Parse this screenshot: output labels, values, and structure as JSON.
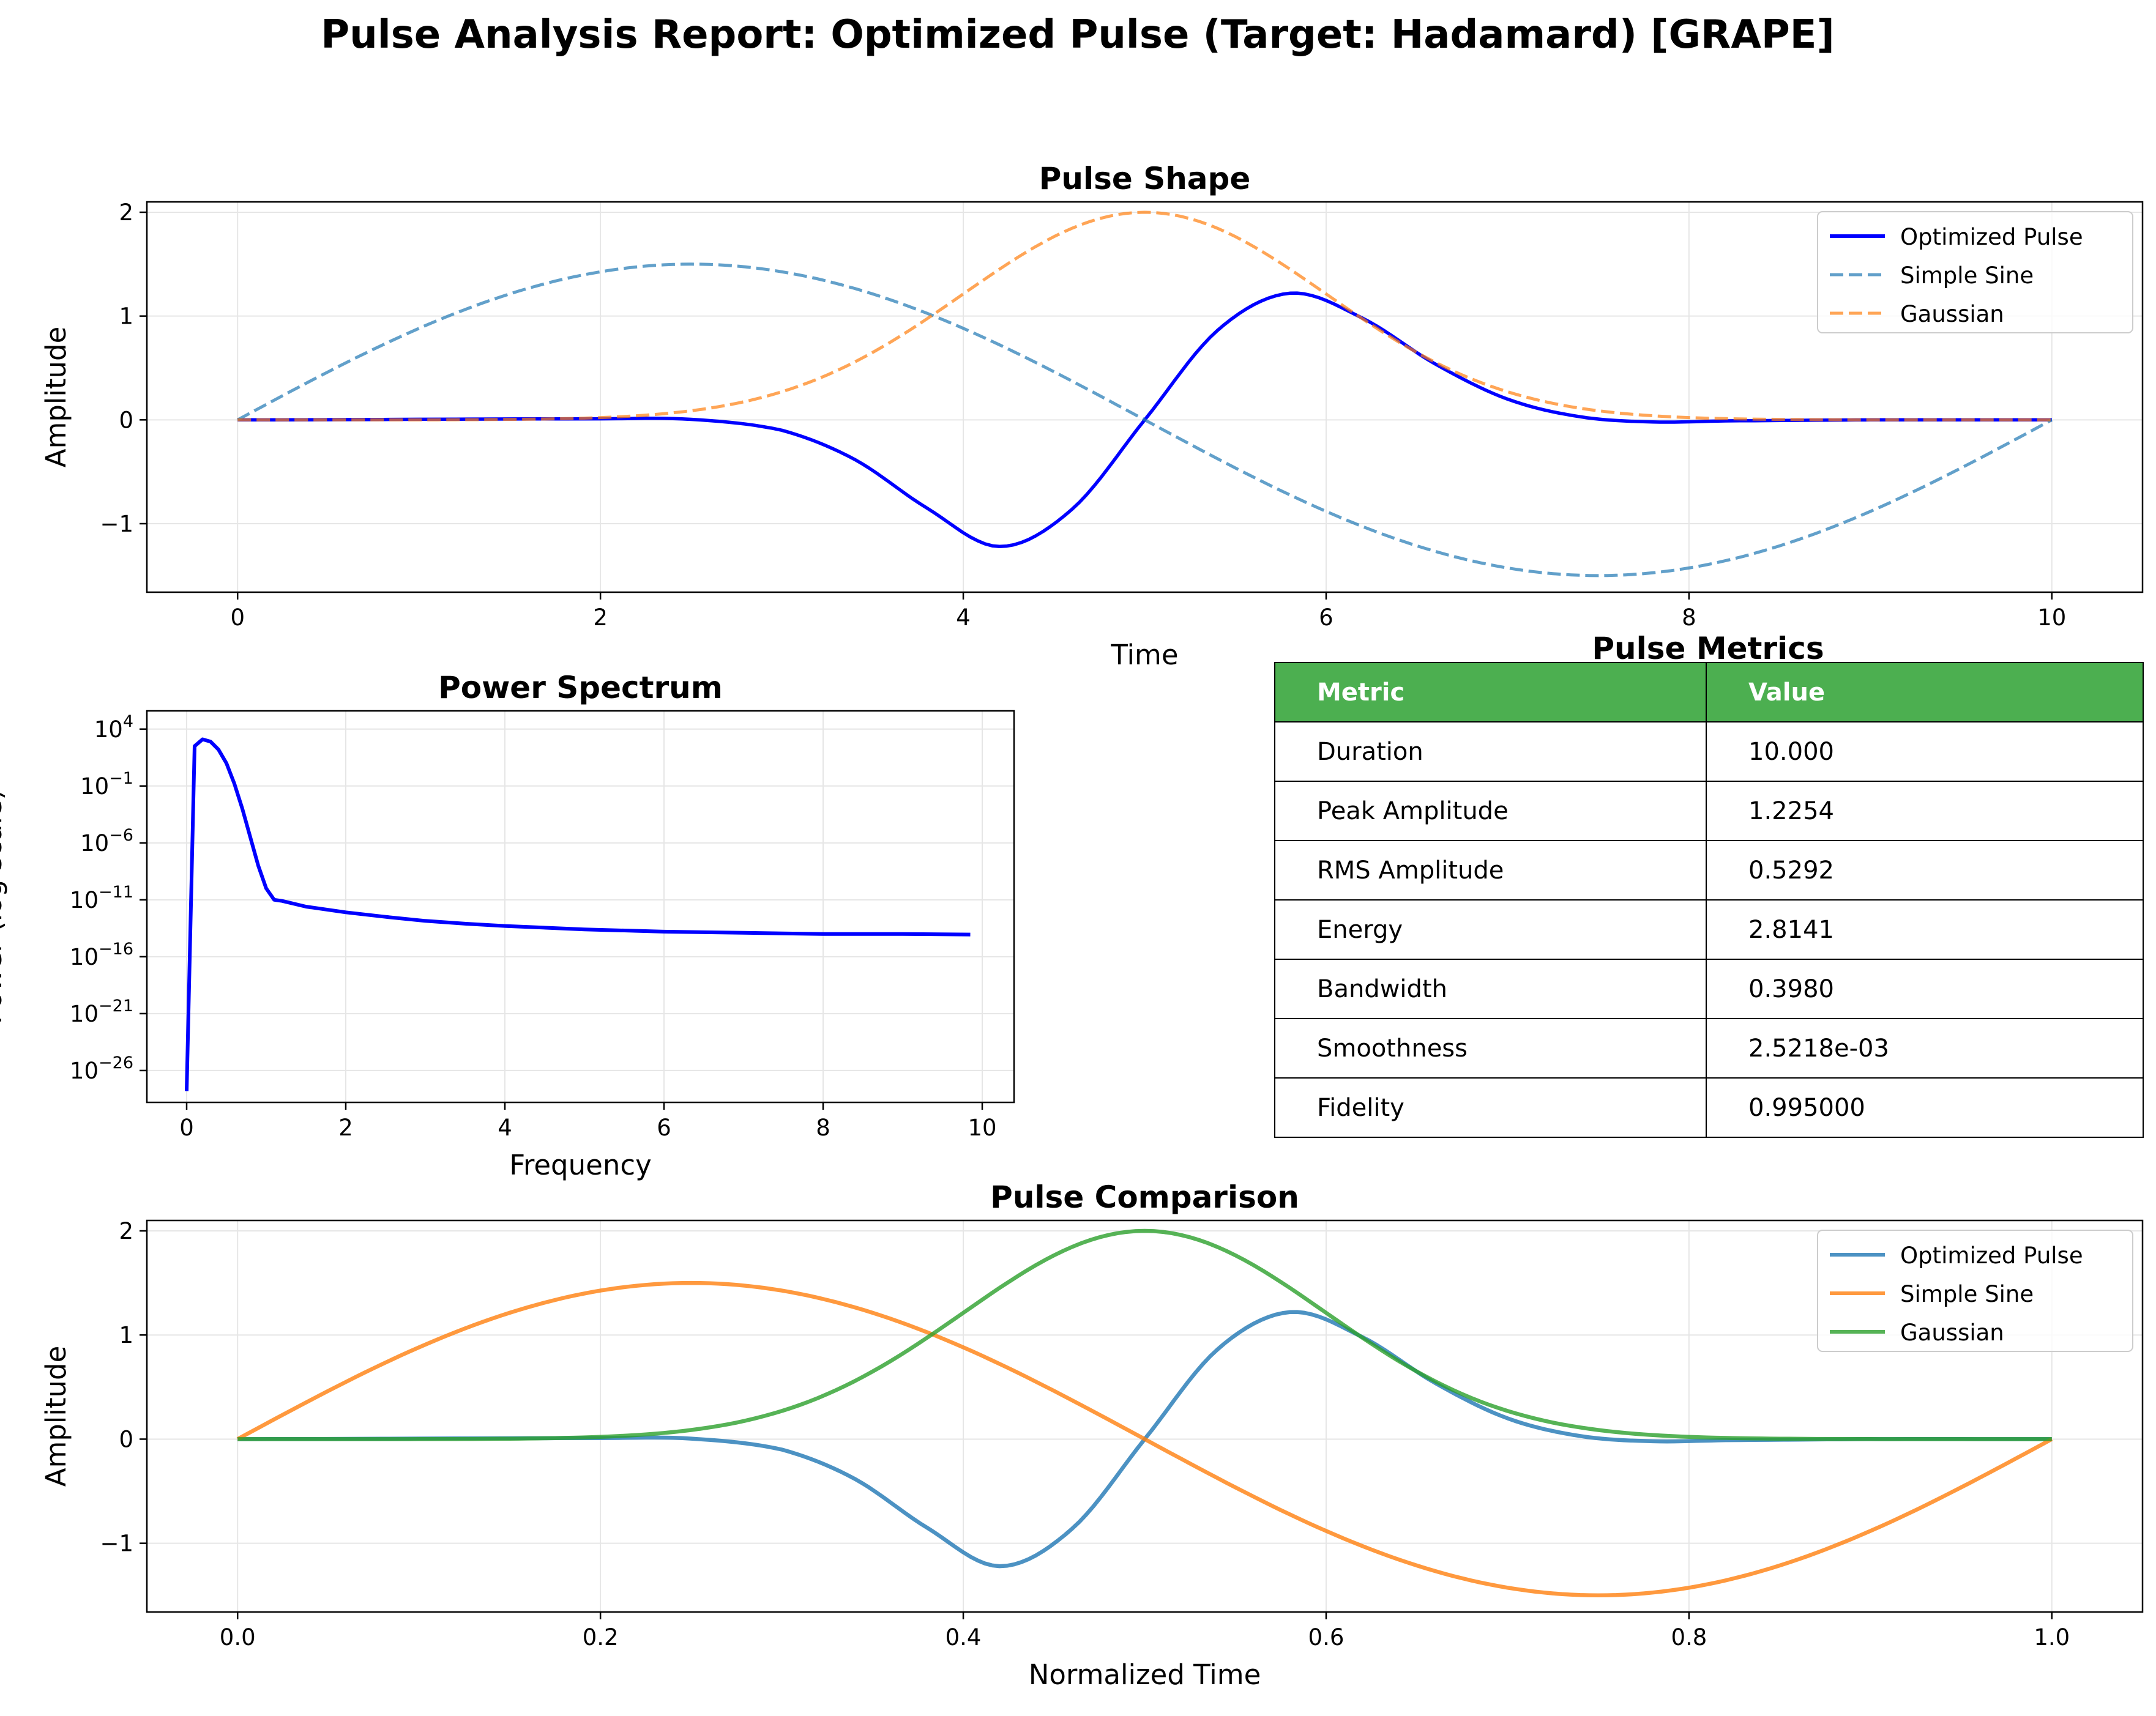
{
  "page": {
    "suptitle": "Pulse Analysis Report: Optimized Pulse (Target: Hadamard) [GRAPE]"
  },
  "chart_data": [
    {
      "id": "pulse_shape",
      "type": "line",
      "title": "Pulse Shape",
      "xlabel": "Time",
      "ylabel": "Amplitude",
      "xlim": [
        -0.5,
        10.5
      ],
      "ylim": [
        -1.66,
        2.1
      ],
      "xticks": [
        0,
        2,
        4,
        6,
        8,
        10
      ],
      "xtick_labels": [
        "0",
        "2",
        "4",
        "6",
        "8",
        "10"
      ],
      "yticks": [
        -1,
        0,
        1,
        2
      ],
      "ytick_labels": [
        "−1",
        "0",
        "1",
        "2"
      ],
      "grid": true,
      "legend": "top-right",
      "series": [
        {
          "name": "Optimized Pulse",
          "color": "#0000ff",
          "style": "solid",
          "x": [
            0,
            2,
            2.5,
            3.0,
            3.4,
            3.8,
            4.2,
            4.6,
            5.0,
            5.4,
            5.8,
            6.2,
            6.6,
            7.0,
            7.4,
            7.8,
            8.2,
            9,
            10
          ],
          "values": [
            0,
            0.01,
            0.005,
            -0.1,
            -0.38,
            -0.85,
            -1.22,
            -0.86,
            0.0,
            0.86,
            1.22,
            0.98,
            0.54,
            0.2,
            0.03,
            -0.02,
            -0.01,
            0,
            0
          ]
        },
        {
          "name": "Simple Sine",
          "color": "#1f77b4",
          "style": "dashed",
          "function": "1.5*sin(2*pi*t/10)",
          "x_range": [
            0,
            10
          ]
        },
        {
          "name": "Gaussian",
          "color": "#ff7f0e",
          "style": "dashed",
          "function": "2*exp(-((t-5)^2)/2)",
          "x_range": [
            0,
            10
          ]
        }
      ]
    },
    {
      "id": "power_spectrum",
      "type": "line",
      "title": "Power Spectrum",
      "xlabel": "Frequency",
      "ylabel": "Power (log scale)",
      "yscale": "log",
      "xlim": [
        -0.5,
        10.4
      ],
      "ylim_log10": [
        -28.8,
        5.6
      ],
      "xticks": [
        0,
        2,
        4,
        6,
        8,
        10
      ],
      "xtick_labels": [
        "0",
        "2",
        "4",
        "6",
        "8",
        "10"
      ],
      "yticks_log10": [
        4,
        -1,
        -6,
        -11,
        -16,
        -21,
        -26
      ],
      "ytick_mantissa": "10",
      "ytick_exponents": [
        "4",
        "−1",
        "−6",
        "−11",
        "−16",
        "−21",
        "−26"
      ],
      "grid": true,
      "series": [
        {
          "name": "",
          "color": "#0000ff",
          "x": [
            0,
            0.1,
            0.2,
            0.3,
            0.4,
            0.5,
            0.6,
            0.7,
            0.8,
            0.9,
            1.0,
            1.1,
            1.2,
            1.5,
            2,
            2.5,
            3,
            3.5,
            4,
            5,
            6,
            7,
            8,
            9,
            9.85
          ],
          "log10_values": [
            -27.8,
            2.5,
            3.1,
            2.9,
            2.2,
            1.0,
            -0.8,
            -3.0,
            -5.5,
            -8.0,
            -10.0,
            -11.0,
            -11.1,
            -11.6,
            -12.1,
            -12.5,
            -12.85,
            -13.1,
            -13.3,
            -13.6,
            -13.8,
            -13.9,
            -14.0,
            -14.0,
            -14.05
          ]
        }
      ]
    },
    {
      "id": "pulse_metrics",
      "type": "table",
      "title": "Pulse Metrics",
      "columns": [
        "Metric",
        "Value"
      ],
      "header_color": "#4caf50",
      "rows": [
        [
          "Duration",
          "10.000"
        ],
        [
          "Peak Amplitude",
          "1.2254"
        ],
        [
          "RMS Amplitude",
          "0.5292"
        ],
        [
          "Energy",
          "2.8141"
        ],
        [
          "Bandwidth",
          "0.3980"
        ],
        [
          "Smoothness",
          "2.5218e-03"
        ],
        [
          "Fidelity",
          "0.995000"
        ]
      ]
    },
    {
      "id": "pulse_comparison",
      "type": "line",
      "title": "Pulse Comparison",
      "xlabel": "Normalized Time",
      "ylabel": "Amplitude",
      "xlim": [
        -0.05,
        1.05
      ],
      "ylim": [
        -1.66,
        2.1
      ],
      "xticks": [
        0.0,
        0.2,
        0.4,
        0.6,
        0.8,
        1.0
      ],
      "xtick_labels": [
        "0.0",
        "0.2",
        "0.4",
        "0.6",
        "0.8",
        "1.0"
      ],
      "yticks": [
        -1,
        0,
        1,
        2
      ],
      "ytick_labels": [
        "−1",
        "0",
        "1",
        "2"
      ],
      "grid": true,
      "legend": "top-right",
      "series": [
        {
          "name": "Optimized Pulse",
          "color": "#1f77b4",
          "style": "solid",
          "x": [
            0,
            0.2,
            0.25,
            0.3,
            0.34,
            0.38,
            0.42,
            0.46,
            0.5,
            0.54,
            0.58,
            0.62,
            0.66,
            0.7,
            0.74,
            0.78,
            0.82,
            0.9,
            1.0
          ],
          "values": [
            0,
            0.01,
            0.005,
            -0.1,
            -0.38,
            -0.85,
            -1.22,
            -0.86,
            0.0,
            0.86,
            1.22,
            0.98,
            0.54,
            0.2,
            0.03,
            -0.02,
            -0.01,
            0,
            0
          ]
        },
        {
          "name": "Simple Sine",
          "color": "#ff7f0e",
          "style": "solid",
          "function": "1.5*sin(2*pi*t)",
          "x_range": [
            0,
            1
          ]
        },
        {
          "name": "Gaussian",
          "color": "#2ca02c",
          "style": "solid",
          "function": "2*exp(-((t-0.5)^2)/0.02)",
          "x_range": [
            0,
            1
          ]
        }
      ]
    }
  ]
}
